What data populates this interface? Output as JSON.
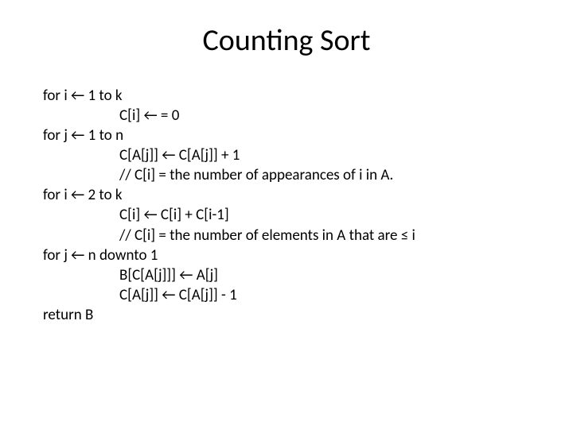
{
  "title": {
    "text": "Counting Sort",
    "fontsize": 38,
    "color": "#000000"
  },
  "code": {
    "fontsize": 19,
    "color": "#000000",
    "lines": [
      {
        "text": "for i ← 1 to k",
        "indent": false
      },
      {
        "text": "C[i] ← = 0",
        "indent": true
      },
      {
        "text": "for j ← 1 to n",
        "indent": false
      },
      {
        "text": "C[A[j]] ← C[A[j]] + 1",
        "indent": true
      },
      {
        "text": "// C[i] = the number of appearances of i in A.",
        "indent": true
      },
      {
        "text": "for i ← 2 to k",
        "indent": false
      },
      {
        "text": "C[i] ← C[i] + C[i-1]",
        "indent": true
      },
      {
        "text": "// C[i] = the number of elements in A that are ≤ i",
        "indent": true
      },
      {
        "text": "for j ← n downto 1",
        "indent": false
      },
      {
        "text": "B[C[A[j]]] ← A[j]",
        "indent": true
      },
      {
        "text": "C[A[j]] ← C[A[j]] - 1",
        "indent": true
      },
      {
        "text": "return B",
        "indent": false
      }
    ]
  },
  "background_color": "#ffffff"
}
